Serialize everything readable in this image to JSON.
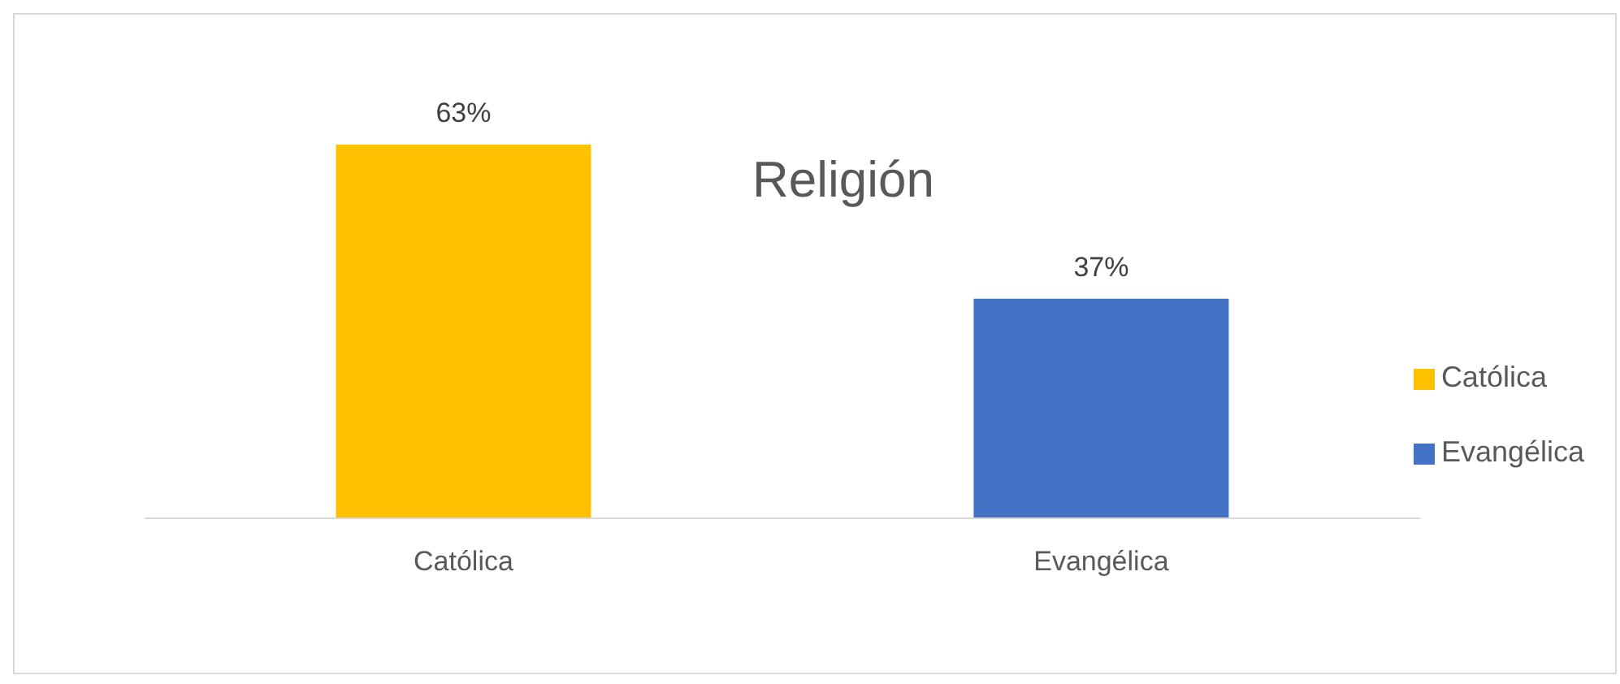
{
  "chart_data": {
    "type": "bar",
    "title": "Religión",
    "categories": [
      "Católica",
      "Evangélica"
    ],
    "stacked": true,
    "series": [
      {
        "name": "Católica",
        "color": "#ffc000",
        "values": [
          63,
          null
        ],
        "value_labels": [
          "63%",
          null
        ]
      },
      {
        "name": "Evangélica",
        "color": "#4472c4",
        "values": [
          null,
          37
        ],
        "value_labels": [
          null,
          "37%"
        ]
      }
    ],
    "legend": "right",
    "grid": false
  }
}
